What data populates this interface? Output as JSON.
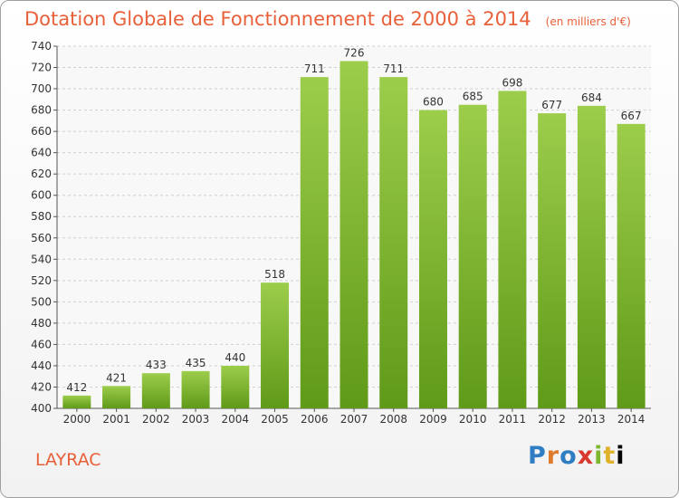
{
  "title": "Dotation Globale de Fonctionnement de 2000 à 2014",
  "unit_note": "(en milliers d'€)",
  "commune": "LAYRAC",
  "logo_text": "Proxiti",
  "colors": {
    "bar_light": "#9ccd4b",
    "bar_dark": "#5f9a18",
    "title": "#e8603a",
    "grid": "#d0d0d0"
  },
  "chart_data": {
    "type": "bar",
    "categories": [
      "2000",
      "2001",
      "2002",
      "2003",
      "2004",
      "2005",
      "2006",
      "2007",
      "2008",
      "2009",
      "2010",
      "2011",
      "2012",
      "2013",
      "2014"
    ],
    "values": [
      412,
      421,
      433,
      435,
      440,
      518,
      711,
      726,
      711,
      680,
      685,
      698,
      677,
      684,
      667
    ],
    "ylim": [
      400,
      740
    ],
    "yticks": [
      400,
      420,
      440,
      460,
      480,
      500,
      520,
      540,
      560,
      580,
      600,
      620,
      640,
      660,
      680,
      700,
      720,
      740
    ],
    "grid": true,
    "data_labels": true
  }
}
